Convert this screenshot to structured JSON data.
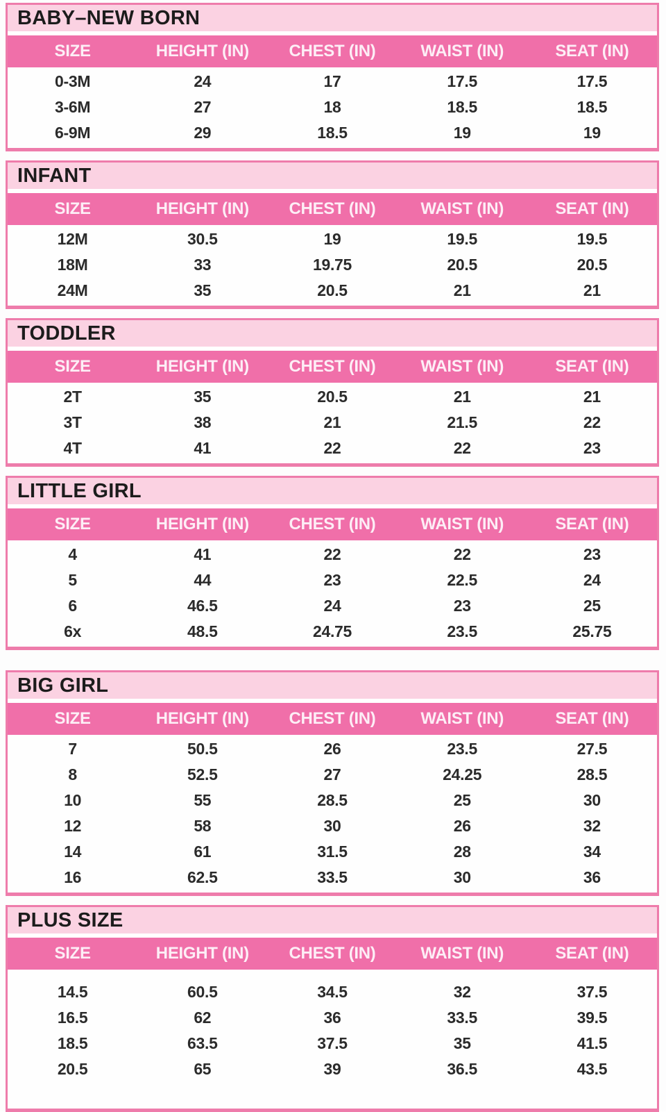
{
  "colors": {
    "page_bg": "#fdfdfd",
    "table_border": "#ee7cab",
    "title_bar_bg": "#fbd2e2",
    "title_text": "#1c1c1c",
    "header_bar_bg": "#f06fa9",
    "header_text": "#fdeef6",
    "cell_text": "#2b2b2b",
    "row_bg": "#fefefe"
  },
  "columns": [
    "SIZE",
    "HEIGHT (IN)",
    "CHEST (IN)",
    "WAIST (IN)",
    "SEAT (IN)"
  ],
  "tables": [
    {
      "title": "BABY–NEW BORN",
      "rows": [
        [
          "0-3M",
          "24",
          "17",
          "17.5",
          "17.5"
        ],
        [
          "3-6M",
          "27",
          "18",
          "18.5",
          "18.5"
        ],
        [
          "6-9M",
          "29",
          "18.5",
          "19",
          "19"
        ]
      ]
    },
    {
      "title": "INFANT",
      "rows": [
        [
          "12M",
          "30.5",
          "19",
          "19.5",
          "19.5"
        ],
        [
          "18M",
          "33",
          "19.75",
          "20.5",
          "20.5"
        ],
        [
          "24M",
          "35",
          "20.5",
          "21",
          "21"
        ]
      ]
    },
    {
      "title": "TODDLER",
      "rows": [
        [
          "2T",
          "35",
          "20.5",
          "21",
          "21"
        ],
        [
          "3T",
          "38",
          "21",
          "21.5",
          "22"
        ],
        [
          "4T",
          "41",
          "22",
          "22",
          "23"
        ]
      ]
    },
    {
      "title": "LITTLE GIRL",
      "rows": [
        [
          "4",
          "41",
          "22",
          "22",
          "23"
        ],
        [
          "5",
          "44",
          "23",
          "22.5",
          "24"
        ],
        [
          "6",
          "46.5",
          "24",
          "23",
          "25"
        ],
        [
          "6x",
          "48.5",
          "24.75",
          "23.5",
          "25.75"
        ]
      ]
    },
    {
      "title": "BIG GIRL",
      "rows": [
        [
          "7",
          "50.5",
          "26",
          "23.5",
          "27.5"
        ],
        [
          "8",
          "52.5",
          "27",
          "24.25",
          "28.5"
        ],
        [
          "10",
          "55",
          "28.5",
          "25",
          "30"
        ],
        [
          "12",
          "58",
          "30",
          "26",
          "32"
        ],
        [
          "14",
          "61",
          "31.5",
          "28",
          "34"
        ],
        [
          "16",
          "62.5",
          "33.5",
          "30",
          "36"
        ]
      ]
    },
    {
      "title": "PLUS SIZE",
      "rows": [
        [
          "14.5",
          "60.5",
          "34.5",
          "32",
          "37.5"
        ],
        [
          "16.5",
          "62",
          "36",
          "33.5",
          "39.5"
        ],
        [
          "18.5",
          "63.5",
          "37.5",
          "35",
          "41.5"
        ],
        [
          "20.5",
          "65",
          "39",
          "36.5",
          "43.5"
        ]
      ]
    }
  ]
}
